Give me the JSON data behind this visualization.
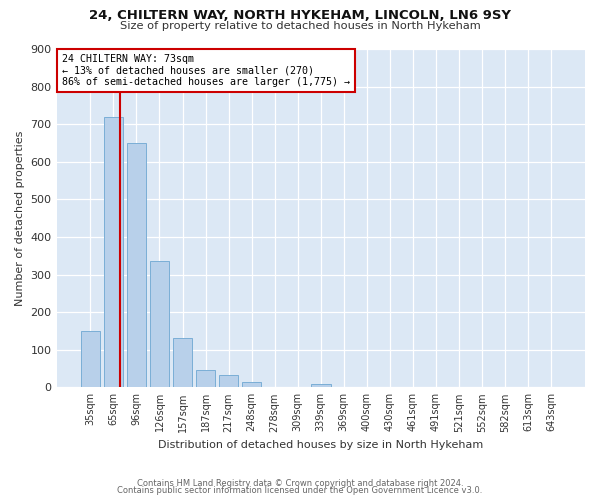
{
  "title1": "24, CHILTERN WAY, NORTH HYKEHAM, LINCOLN, LN6 9SY",
  "title2": "Size of property relative to detached houses in North Hykeham",
  "xlabel": "Distribution of detached houses by size in North Hykeham",
  "ylabel": "Number of detached properties",
  "bar_labels": [
    "35sqm",
    "65sqm",
    "96sqm",
    "126sqm",
    "157sqm",
    "187sqm",
    "217sqm",
    "248sqm",
    "278sqm",
    "309sqm",
    "339sqm",
    "369sqm",
    "400sqm",
    "430sqm",
    "461sqm",
    "491sqm",
    "521sqm",
    "552sqm",
    "582sqm",
    "613sqm",
    "643sqm"
  ],
  "bar_values": [
    150,
    720,
    650,
    335,
    130,
    45,
    33,
    14,
    0,
    0,
    10,
    0,
    0,
    0,
    0,
    0,
    0,
    0,
    0,
    0,
    0
  ],
  "bar_color": "#b8d0ea",
  "bar_edge_color": "#7aaed6",
  "annotation_text_line1": "24 CHILTERN WAY: 73sqm",
  "annotation_text_line2": "← 13% of detached houses are smaller (270)",
  "annotation_text_line3": "86% of semi-detached houses are larger (1,775) →",
  "annotation_box_facecolor": "#ffffff",
  "annotation_box_edgecolor": "#cc0000",
  "red_line_color": "#cc0000",
  "ylim": [
    0,
    900
  ],
  "yticks": [
    0,
    100,
    200,
    300,
    400,
    500,
    600,
    700,
    800,
    900
  ],
  "footer1": "Contains HM Land Registry data © Crown copyright and database right 2024.",
  "footer2": "Contains public sector information licensed under the Open Government Licence v3.0.",
  "fig_facecolor": "#ffffff",
  "plot_facecolor": "#dce8f5"
}
